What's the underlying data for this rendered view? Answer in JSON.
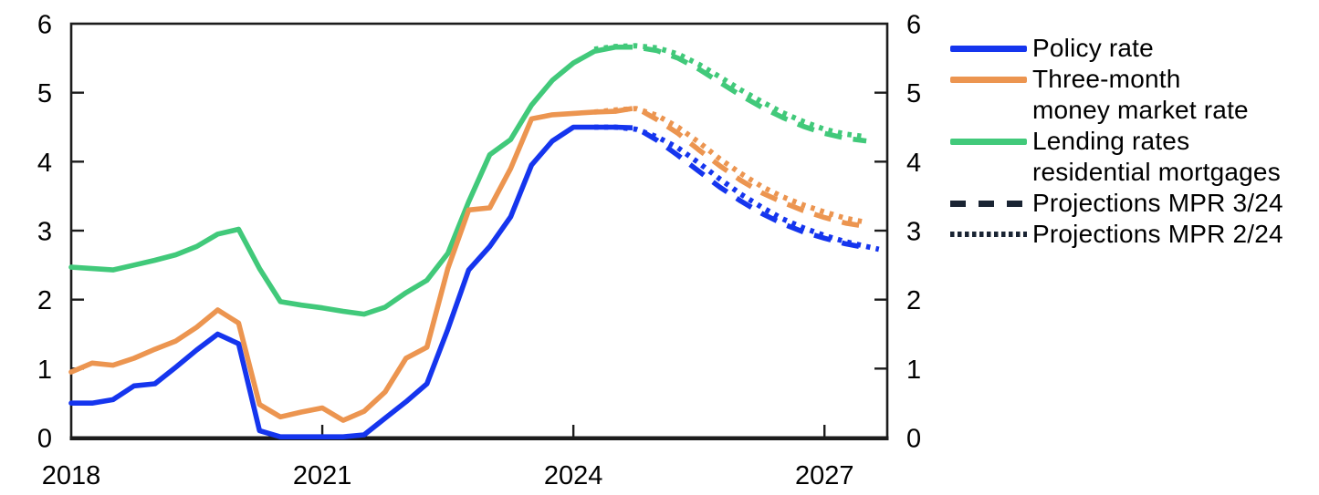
{
  "chart_data": {
    "type": "line",
    "title": "",
    "xlabel": "",
    "ylabel": "",
    "grid": false,
    "legend_position": "right",
    "x_axis": {
      "range": [
        2018,
        2027.75
      ],
      "labels": [
        {
          "value": 2018,
          "label": "2018"
        },
        {
          "value": 2021,
          "label": "2021"
        },
        {
          "value": 2024,
          "label": "2024"
        },
        {
          "value": 2027,
          "label": "2027"
        }
      ],
      "tick_marks": [
        2021,
        2024,
        2027
      ]
    },
    "y_axis": {
      "range": [
        0,
        6
      ],
      "labels": [
        "0",
        "1",
        "2",
        "3",
        "4",
        "5",
        "6"
      ],
      "tick_marks": [
        1,
        2,
        3,
        4,
        5
      ],
      "sides": "both"
    },
    "colors": {
      "policy_rate": "#1535ee",
      "money_market": "#ec9550",
      "lending": "#41c97a",
      "projection_legend": "#1a2433",
      "axis": "#1c1c1c",
      "text": "#000000"
    },
    "series": [
      {
        "id": "lending-rates-projection-mpr-2-24",
        "name": "Lending rates residential mortgages — Projections MPR 2/24",
        "color": "#41c97a",
        "style": "dotted",
        "points": [
          [
            2024.25,
            5.63
          ],
          [
            2024.5,
            5.67
          ],
          [
            2024.75,
            5.68
          ],
          [
            2025,
            5.65
          ],
          [
            2025.25,
            5.56
          ],
          [
            2025.5,
            5.41
          ],
          [
            2025.75,
            5.23
          ],
          [
            2026,
            5.04
          ],
          [
            2026.25,
            4.87
          ],
          [
            2026.5,
            4.71
          ],
          [
            2026.75,
            4.58
          ],
          [
            2027,
            4.47
          ],
          [
            2027.25,
            4.4
          ],
          [
            2027.5,
            4.36
          ]
        ]
      },
      {
        "id": "lending-rates-projection-mpr-3-24",
        "name": "Lending rates residential mortgages — Projections MPR 3/24",
        "color": "#41c97a",
        "style": "dashed",
        "points": [
          [
            2024.5,
            5.66
          ],
          [
            2024.75,
            5.66
          ],
          [
            2025,
            5.61
          ],
          [
            2025.25,
            5.5
          ],
          [
            2025.5,
            5.34
          ],
          [
            2025.75,
            5.15
          ],
          [
            2026,
            4.96
          ],
          [
            2026.25,
            4.79
          ],
          [
            2026.5,
            4.64
          ],
          [
            2026.75,
            4.51
          ],
          [
            2027,
            4.41
          ],
          [
            2027.25,
            4.34
          ],
          [
            2027.5,
            4.3
          ]
        ]
      },
      {
        "id": "money-market-projection-mpr-2-24",
        "name": "Three-month money market rate — Projections MPR 2/24",
        "color": "#ec9550",
        "style": "dotted",
        "points": [
          [
            2024.25,
            4.72
          ],
          [
            2024.5,
            4.75
          ],
          [
            2024.75,
            4.77
          ],
          [
            2025,
            4.67
          ],
          [
            2025.25,
            4.5
          ],
          [
            2025.5,
            4.28
          ],
          [
            2025.75,
            4.04
          ],
          [
            2026,
            3.83
          ],
          [
            2026.25,
            3.64
          ],
          [
            2026.5,
            3.49
          ],
          [
            2026.75,
            3.37
          ],
          [
            2027,
            3.27
          ],
          [
            2027.25,
            3.18
          ],
          [
            2027.5,
            3.12
          ]
        ]
      },
      {
        "id": "money-market-projection-mpr-3-24",
        "name": "Three-month money market rate — Projections MPR 3/24",
        "color": "#ec9550",
        "style": "dashed",
        "points": [
          [
            2024.5,
            4.73
          ],
          [
            2024.75,
            4.78
          ],
          [
            2025,
            4.61
          ],
          [
            2025.25,
            4.41
          ],
          [
            2025.5,
            4.17
          ],
          [
            2025.75,
            3.94
          ],
          [
            2026,
            3.73
          ],
          [
            2026.25,
            3.55
          ],
          [
            2026.5,
            3.41
          ],
          [
            2026.75,
            3.29
          ],
          [
            2027,
            3.19
          ],
          [
            2027.25,
            3.11
          ],
          [
            2027.5,
            3.06
          ]
        ]
      },
      {
        "id": "policy-rate-projection-mpr-2-24",
        "name": "Policy rate — Projections MPR 2/24",
        "color": "#1535ee",
        "style": "dotted",
        "points": [
          [
            2024.25,
            4.5
          ],
          [
            2024.5,
            4.5
          ],
          [
            2024.75,
            4.47
          ],
          [
            2025,
            4.36
          ],
          [
            2025.25,
            4.2
          ],
          [
            2025.5,
            3.98
          ],
          [
            2025.75,
            3.75
          ],
          [
            2026,
            3.53
          ],
          [
            2026.25,
            3.34
          ],
          [
            2026.5,
            3.17
          ],
          [
            2026.75,
            3.04
          ],
          [
            2027,
            2.93
          ],
          [
            2027.25,
            2.84
          ],
          [
            2027.5,
            2.77
          ],
          [
            2027.65,
            2.73
          ]
        ]
      },
      {
        "id": "policy-rate-projection-mpr-3-24",
        "name": "Policy rate — Projections MPR 3/24",
        "color": "#1535ee",
        "style": "dashed",
        "points": [
          [
            2024.5,
            4.5
          ],
          [
            2024.75,
            4.49
          ],
          [
            2025,
            4.31
          ],
          [
            2025.25,
            4.09
          ],
          [
            2025.5,
            3.86
          ],
          [
            2025.75,
            3.63
          ],
          [
            2026,
            3.43
          ],
          [
            2026.25,
            3.25
          ],
          [
            2026.5,
            3.1
          ],
          [
            2026.75,
            2.98
          ],
          [
            2027,
            2.89
          ],
          [
            2027.25,
            2.81
          ],
          [
            2027.5,
            2.75
          ]
        ]
      },
      {
        "id": "lending-rates",
        "name": "Lending rates residential mortgages",
        "color": "#41c97a",
        "style": "solid",
        "points": [
          [
            2018,
            2.47
          ],
          [
            2018.25,
            2.45
          ],
          [
            2018.5,
            2.43
          ],
          [
            2018.75,
            2.5
          ],
          [
            2019,
            2.57
          ],
          [
            2019.25,
            2.65
          ],
          [
            2019.5,
            2.77
          ],
          [
            2019.75,
            2.95
          ],
          [
            2020,
            3.02
          ],
          [
            2020.25,
            2.45
          ],
          [
            2020.5,
            1.97
          ],
          [
            2020.75,
            1.92
          ],
          [
            2021,
            1.88
          ],
          [
            2021.25,
            1.83
          ],
          [
            2021.5,
            1.79
          ],
          [
            2021.75,
            1.89
          ],
          [
            2022,
            2.1
          ],
          [
            2022.25,
            2.28
          ],
          [
            2022.5,
            2.67
          ],
          [
            2022.75,
            3.42
          ],
          [
            2023,
            4.1
          ],
          [
            2023.25,
            4.32
          ],
          [
            2023.5,
            4.82
          ],
          [
            2023.75,
            5.18
          ],
          [
            2024,
            5.43
          ],
          [
            2024.25,
            5.6
          ],
          [
            2024.5,
            5.66
          ]
        ]
      },
      {
        "id": "money-market-rate",
        "name": "Three-month money market rate",
        "color": "#ec9550",
        "style": "solid",
        "points": [
          [
            2018,
            0.95
          ],
          [
            2018.25,
            1.08
          ],
          [
            2018.5,
            1.05
          ],
          [
            2018.75,
            1.15
          ],
          [
            2019,
            1.28
          ],
          [
            2019.25,
            1.4
          ],
          [
            2019.5,
            1.6
          ],
          [
            2019.75,
            1.85
          ],
          [
            2020,
            1.66
          ],
          [
            2020.25,
            0.48
          ],
          [
            2020.5,
            0.3
          ],
          [
            2020.75,
            0.37
          ],
          [
            2021,
            0.43
          ],
          [
            2021.25,
            0.25
          ],
          [
            2021.5,
            0.38
          ],
          [
            2021.75,
            0.66
          ],
          [
            2022,
            1.15
          ],
          [
            2022.25,
            1.31
          ],
          [
            2022.5,
            2.45
          ],
          [
            2022.75,
            3.3
          ],
          [
            2023,
            3.33
          ],
          [
            2023.25,
            3.9
          ],
          [
            2023.5,
            4.62
          ],
          [
            2023.75,
            4.68
          ],
          [
            2024,
            4.7
          ],
          [
            2024.25,
            4.72
          ],
          [
            2024.5,
            4.73
          ]
        ]
      },
      {
        "id": "policy-rate",
        "name": "Policy rate",
        "color": "#1535ee",
        "style": "solid",
        "points": [
          [
            2018,
            0.5
          ],
          [
            2018.25,
            0.5
          ],
          [
            2018.5,
            0.55
          ],
          [
            2018.75,
            0.75
          ],
          [
            2019,
            0.78
          ],
          [
            2019.25,
            1.02
          ],
          [
            2019.5,
            1.27
          ],
          [
            2019.75,
            1.5
          ],
          [
            2020,
            1.36
          ],
          [
            2020.25,
            0.1
          ],
          [
            2020.5,
            0.01
          ],
          [
            2020.75,
            0.01
          ],
          [
            2021,
            0.01
          ],
          [
            2021.25,
            0.01
          ],
          [
            2021.5,
            0.04
          ],
          [
            2021.75,
            0.28
          ],
          [
            2022,
            0.52
          ],
          [
            2022.25,
            0.78
          ],
          [
            2022.5,
            1.57
          ],
          [
            2022.75,
            2.43
          ],
          [
            2023,
            2.77
          ],
          [
            2023.25,
            3.2
          ],
          [
            2023.5,
            3.95
          ],
          [
            2023.75,
            4.3
          ],
          [
            2024,
            4.5
          ],
          [
            2024.25,
            4.5
          ],
          [
            2024.5,
            4.5
          ]
        ]
      }
    ],
    "legend": [
      {
        "label": "Policy rate",
        "label2": "",
        "style": "solid",
        "color": "#1535ee"
      },
      {
        "label": "Three-month",
        "label2": "money market rate",
        "style": "solid",
        "color": "#ec9550"
      },
      {
        "label": "Lending rates",
        "label2": "residential mortgages",
        "style": "solid",
        "color": "#41c97a"
      },
      {
        "label": "Projections MPR 3/24",
        "label2": "",
        "style": "dashed",
        "color": "#1a2433"
      },
      {
        "label": "Projections MPR 2/24",
        "label2": "",
        "style": "dotted",
        "color": "#1a2433"
      }
    ]
  }
}
